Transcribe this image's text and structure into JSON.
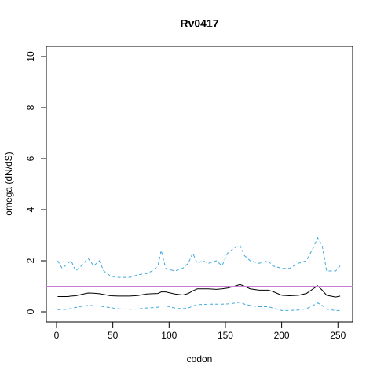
{
  "chart_data": {
    "type": "line",
    "title": "Rv0417",
    "xlabel": "codon",
    "ylabel": "omega (dN/dS)",
    "x": [
      1,
      5,
      10,
      13,
      17,
      22,
      28,
      33,
      38,
      42,
      48,
      55,
      65,
      72,
      80,
      85,
      90,
      93,
      97,
      105,
      112,
      117,
      121,
      125,
      130,
      135,
      142,
      147,
      152,
      158,
      163,
      167,
      172,
      180,
      188,
      192,
      200,
      207,
      215,
      222,
      228,
      232,
      236,
      240,
      248,
      252
    ],
    "series": [
      {
        "color": "#3fa9dc",
        "dash": true,
        "values": [
          2.0,
          1.7,
          1.9,
          2.0,
          1.6,
          1.8,
          2.1,
          1.8,
          2.0,
          1.6,
          1.4,
          1.35,
          1.35,
          1.45,
          1.5,
          1.6,
          1.8,
          2.4,
          1.7,
          1.6,
          1.7,
          1.9,
          2.3,
          1.9,
          2.0,
          1.9,
          2.0,
          1.8,
          2.3,
          2.5,
          2.6,
          2.2,
          2.0,
          1.9,
          2.0,
          1.8,
          1.7,
          1.7,
          1.9,
          2.0,
          2.5,
          2.9,
          2.6,
          1.6,
          1.6,
          1.8
        ]
      },
      {
        "color": "#000000",
        "dash": false,
        "values": [
          0.6,
          0.6,
          0.6,
          0.62,
          0.63,
          0.68,
          0.74,
          0.73,
          0.71,
          0.68,
          0.63,
          0.62,
          0.62,
          0.64,
          0.7,
          0.71,
          0.72,
          0.78,
          0.78,
          0.7,
          0.66,
          0.72,
          0.82,
          0.9,
          0.9,
          0.9,
          0.88,
          0.9,
          0.93,
          1.0,
          1.07,
          1.0,
          0.9,
          0.85,
          0.85,
          0.8,
          0.65,
          0.63,
          0.65,
          0.72,
          0.9,
          1.02,
          0.85,
          0.65,
          0.58,
          0.62
        ]
      },
      {
        "color": "#3fa9dc",
        "dash": true,
        "values": [
          0.08,
          0.09,
          0.1,
          0.13,
          0.17,
          0.21,
          0.25,
          0.24,
          0.23,
          0.2,
          0.16,
          0.12,
          0.1,
          0.11,
          0.15,
          0.16,
          0.18,
          0.23,
          0.23,
          0.15,
          0.12,
          0.15,
          0.22,
          0.28,
          0.29,
          0.3,
          0.3,
          0.3,
          0.31,
          0.34,
          0.38,
          0.3,
          0.25,
          0.2,
          0.2,
          0.15,
          0.05,
          0.05,
          0.07,
          0.12,
          0.25,
          0.35,
          0.25,
          0.1,
          0.05,
          0.05
        ]
      }
    ],
    "hline": {
      "value": 1,
      "color": "#c77dd0"
    },
    "xlim": [
      -9.08,
      263.08
    ],
    "ylim": [
      -0.4,
      10.4
    ],
    "xticks": [
      0,
      50,
      100,
      150,
      200,
      250
    ],
    "yticks": [
      0,
      2,
      4,
      6,
      8,
      10
    ]
  }
}
